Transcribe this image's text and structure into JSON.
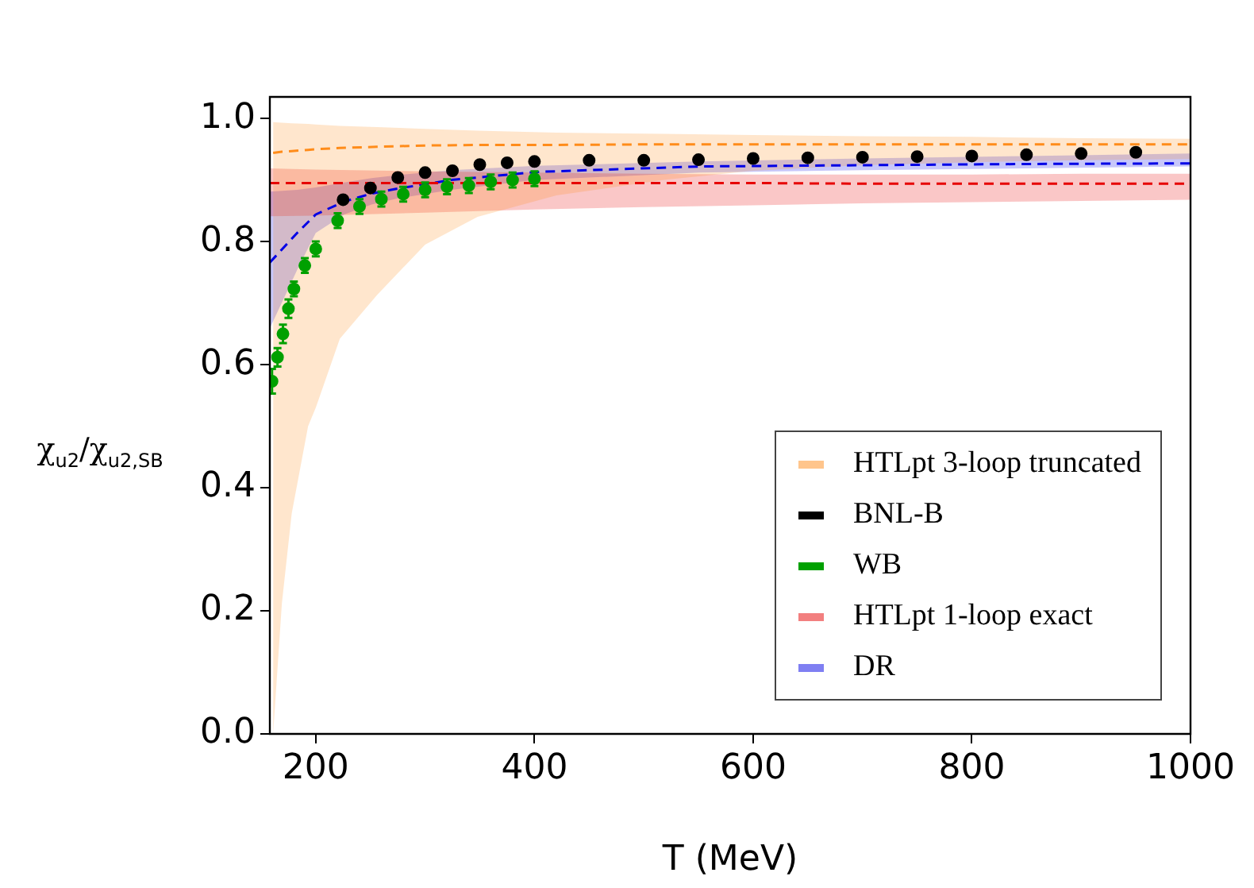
{
  "chart_data": {
    "type": "line",
    "xlabel": "T (MeV)",
    "ylabel": "χ$_{u2}$/χ$_{u2,SB}$",
    "xlim": [
      158,
      1000
    ],
    "ylim": [
      0,
      1.035
    ],
    "xticks": [
      200,
      400,
      600,
      800,
      1000
    ],
    "yticks": [
      {
        "value": 0,
        "label": "0.0"
      },
      {
        "value": 0.2,
        "label": "0.2"
      },
      {
        "value": 0.4,
        "label": "0.4"
      },
      {
        "value": 0.6,
        "label": "0.6"
      },
      {
        "value": 0.8,
        "label": "0.8"
      },
      {
        "value": 1,
        "label": "1.0"
      }
    ],
    "grid": false,
    "legend": "bottom right",
    "line_style": "dashed",
    "series": [
      {
        "name": "HTLpt 3-loop truncated",
        "color": "#ff8c1a",
        "x": [
          161,
          169,
          178,
          193,
          200,
          222,
          256,
          300,
          348,
          420,
          518,
          600,
          700,
          800,
          900,
          1000
        ],
        "values": [
          0.944,
          0.946,
          0.947,
          0.949,
          0.95,
          0.952,
          0.954,
          0.956,
          0.957,
          0.957,
          0.958,
          0.958,
          0.958,
          0.958,
          0.958,
          0.958
        ],
        "upper": [
          0.994,
          0.993,
          0.992,
          0.991,
          0.99,
          0.988,
          0.986,
          0.983,
          0.98,
          0.977,
          0.975,
          0.973,
          0.971,
          0.97,
          0.968,
          0.967
        ],
        "lower": [
          0,
          0.212,
          0.358,
          0.5,
          0.53,
          0.642,
          0.713,
          0.795,
          0.84,
          0.875,
          0.9,
          0.915,
          0.924,
          0.929,
          0.932,
          0.934
        ]
      },
      {
        "name": "BNL-B",
        "type": "scatter",
        "color": "#000000",
        "marker": "circle",
        "x": [
          225,
          250,
          275,
          300,
          325,
          350,
          375,
          400,
          450,
          500,
          550,
          600,
          650,
          700,
          750,
          800,
          850,
          900,
          950
        ],
        "values": [
          0.868,
          0.887,
          0.904,
          0.912,
          0.915,
          0.925,
          0.928,
          0.93,
          0.932,
          0.932,
          0.933,
          0.935,
          0.936,
          0.937,
          0.938,
          0.939,
          0.941,
          0.943,
          0.945
        ]
      },
      {
        "name": "WB",
        "type": "scatter",
        "color": "#00a000",
        "marker": "circle",
        "x": [
          160,
          165,
          170,
          175,
          180,
          190,
          200,
          220,
          240,
          260,
          280,
          300,
          320,
          340,
          360,
          380,
          400
        ],
        "values": [
          0.573,
          0.612,
          0.65,
          0.691,
          0.723,
          0.761,
          0.788,
          0.834,
          0.857,
          0.869,
          0.877,
          0.884,
          0.889,
          0.891,
          0.897,
          0.9,
          0.902
        ],
        "errors": [
          0.02,
          0.015,
          0.015,
          0.015,
          0.012,
          0.012,
          0.012,
          0.012,
          0.012,
          0.012,
          0.012,
          0.012,
          0.012,
          0.012,
          0.012,
          0.012,
          0.012
        ]
      },
      {
        "name": "HTLpt 1-loop exact",
        "color": "#e60000",
        "x": [
          158,
          200,
          300,
          400,
          500,
          600,
          700,
          800,
          900,
          1000
        ],
        "values": [
          0.895,
          0.895,
          0.895,
          0.895,
          0.895,
          0.895,
          0.894,
          0.894,
          0.894,
          0.894
        ],
        "upper": [
          0.919,
          0.917,
          0.914,
          0.912,
          0.91,
          0.909,
          0.909,
          0.909,
          0.91,
          0.91
        ],
        "lower": [
          0.841,
          0.842,
          0.847,
          0.852,
          0.856,
          0.859,
          0.862,
          0.864,
          0.866,
          0.868
        ]
      },
      {
        "name": "DR",
        "color": "#0000e6",
        "x": [
          158,
          183,
          200,
          226,
          251,
          275,
          324,
          401,
          551,
          700,
          850,
          1000
        ],
        "values": [
          0.766,
          0.814,
          0.844,
          0.865,
          0.878,
          0.886,
          0.9,
          0.913,
          0.922,
          0.924,
          0.926,
          0.927
        ],
        "upper": [
          0.881,
          0.884,
          0.888,
          0.896,
          0.903,
          0.908,
          0.916,
          0.923,
          0.93,
          0.935,
          0.939,
          0.943
        ],
        "lower": [
          0.659,
          0.754,
          0.814,
          0.844,
          0.86,
          0.87,
          0.884,
          0.9,
          0.912,
          0.916,
          0.919,
          0.922
        ]
      }
    ]
  }
}
